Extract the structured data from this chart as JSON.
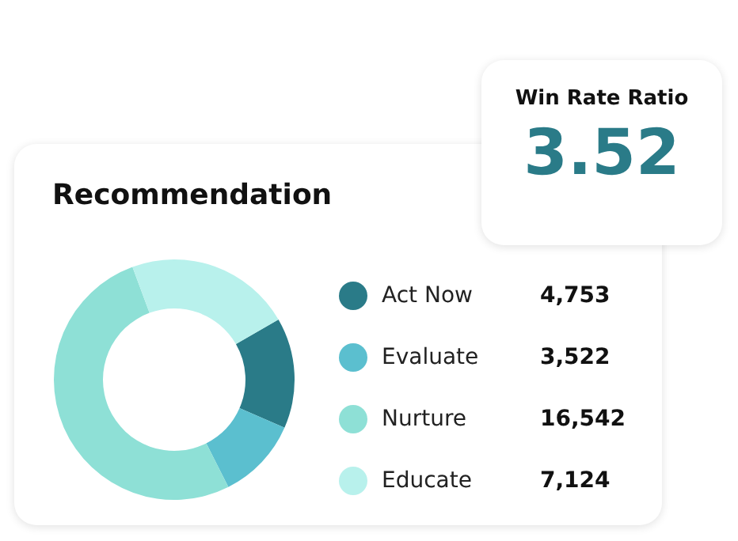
{
  "chart_data": [
    {
      "type": "donut",
      "title": "Recommendation",
      "categories": [
        "Act Now",
        "Evaluate",
        "Nurture",
        "Educate"
      ],
      "values": [
        4753,
        3522,
        16542,
        7124
      ],
      "colors": [
        "#2a7b88",
        "#5bbfcf",
        "#8ee0d6",
        "#b8f1ec"
      ],
      "legend": "right",
      "value_labels": [
        "4,753",
        "3,522",
        "16,542",
        "7,124"
      ]
    },
    {
      "type": "other",
      "title": "Win Rate Ratio",
      "annotations": [
        "3.52"
      ]
    }
  ]
}
